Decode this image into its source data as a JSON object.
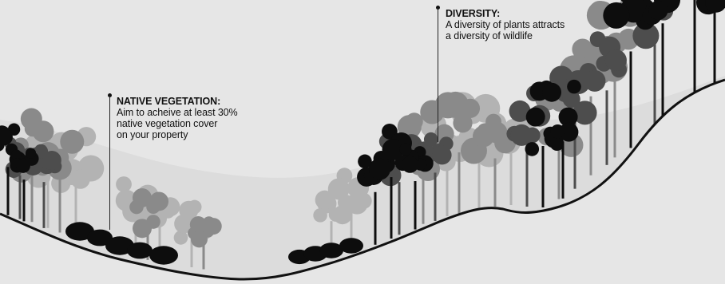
{
  "callouts": {
    "native": {
      "heading": "NATIVE VEGETATION:",
      "lines": [
        "Aim to acheive at least 30%",
        "native vegetation cover",
        "on your property"
      ]
    },
    "diversity": {
      "heading": "DIVERSITY:",
      "lines": [
        "A diversity of plants attracts",
        "a diversity of wildlife"
      ]
    }
  },
  "colors": {
    "background": "#e6e6e6",
    "hill_silhouette": "#dcdcdc",
    "ground_line": "#111111",
    "tree_black": "#0d0d0d",
    "tree_dark": "#4d4d4d",
    "tree_mid": "#8a8a8a",
    "tree_light": "#b3b3b3",
    "tree_white": "#f2f2f2"
  }
}
